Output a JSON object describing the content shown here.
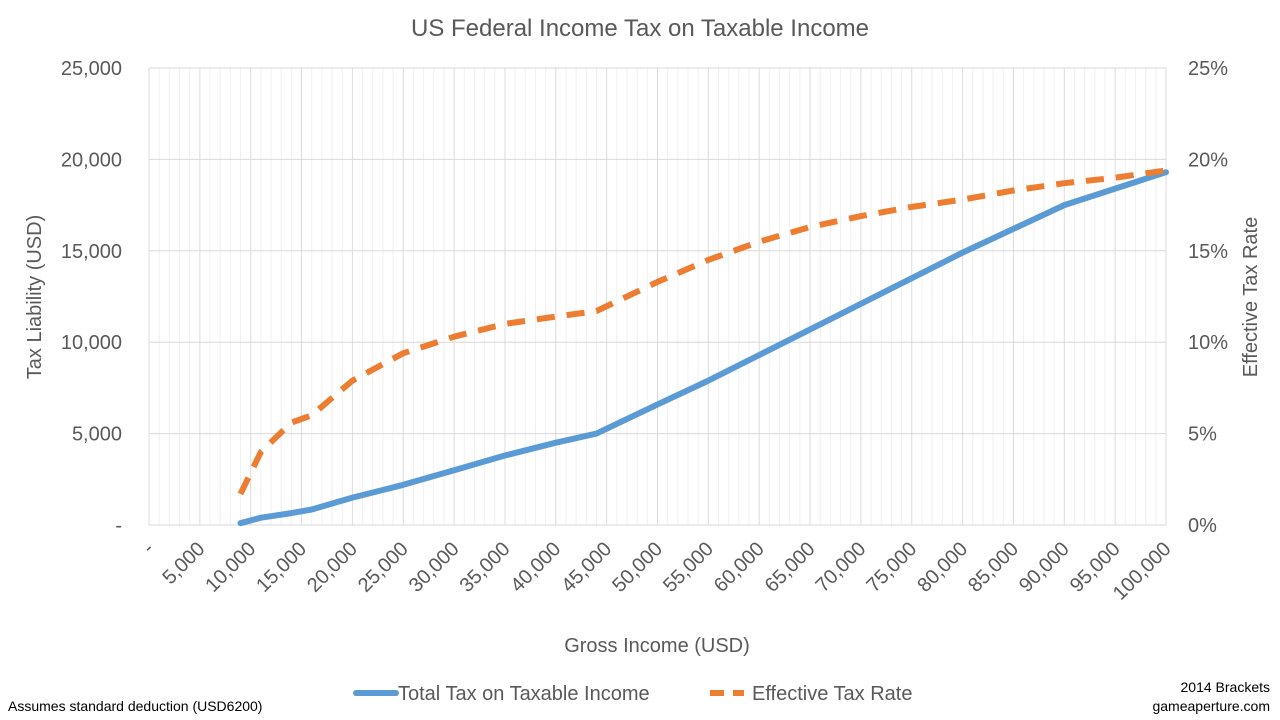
{
  "chart_data": {
    "type": "line",
    "title": "US Federal Income Tax on Taxable Income",
    "xlabel": "Gross Income (USD)",
    "ylabel": "Tax Liability (USD)",
    "y2label": "Effective Tax Rate",
    "xlim": [
      0,
      100000
    ],
    "ylim": [
      0,
      25000
    ],
    "y2lim": [
      0,
      0.25
    ],
    "x_ticks": [
      0,
      5000,
      10000,
      15000,
      20000,
      25000,
      30000,
      35000,
      40000,
      45000,
      50000,
      55000,
      60000,
      65000,
      70000,
      75000,
      80000,
      85000,
      90000,
      95000,
      100000
    ],
    "x_tick_labels": [
      "-",
      "5,000",
      "10,000",
      "15,000",
      "20,000",
      "25,000",
      "30,000",
      "35,000",
      "40,000",
      "45,000",
      "50,000",
      "55,000",
      "60,000",
      "65,000",
      "70,000",
      "75,000",
      "80,000",
      "85,000",
      "90,000",
      "95,000",
      "100,000"
    ],
    "y_ticks": [
      0,
      5000,
      10000,
      15000,
      20000,
      25000
    ],
    "y_tick_labels": [
      "-",
      "5,000",
      "10,000",
      "15,000",
      "20,000",
      "25,000"
    ],
    "y2_ticks": [
      0,
      0.05,
      0.1,
      0.15,
      0.2,
      0.25
    ],
    "y2_tick_labels": [
      "0%",
      "5%",
      "10%",
      "15%",
      "20%",
      "25%"
    ],
    "grid": true,
    "legend_position": "bottom",
    "series": [
      {
        "name": "Total Tax on Taxable Income",
        "axis": "left",
        "style": "solid",
        "color": "#5B9BD5",
        "x": [
          9000,
          11000,
          14000,
          16000,
          20000,
          25000,
          30000,
          35000,
          40000,
          44000,
          50000,
          55000,
          60000,
          65000,
          70000,
          75000,
          80000,
          85000,
          90000,
          95000,
          100000
        ],
        "values": [
          100,
          400,
          650,
          850,
          1500,
          2200,
          3000,
          3800,
          4500,
          5000,
          6600,
          7900,
          9300,
          10700,
          12100,
          13500,
          14900,
          16200,
          17500,
          18400,
          19300
        ]
      },
      {
        "name": "Effective Tax Rate",
        "axis": "right",
        "style": "dashed",
        "color": "#ED7D31",
        "x": [
          9000,
          11000,
          14000,
          16000,
          20000,
          25000,
          30000,
          35000,
          40000,
          44000,
          50000,
          55000,
          60000,
          65000,
          70000,
          75000,
          80000,
          85000,
          90000,
          95000,
          100000
        ],
        "values": [
          0.017,
          0.04,
          0.056,
          0.06,
          0.079,
          0.094,
          0.103,
          0.11,
          0.114,
          0.117,
          0.133,
          0.145,
          0.155,
          0.163,
          0.169,
          0.174,
          0.178,
          0.183,
          0.187,
          0.19,
          0.194
        ]
      }
    ]
  },
  "footer": {
    "left_note": "Assumes standard deduction (USD6200)",
    "right_note_line1": "2014 Brackets",
    "right_note_line2": "gameaperture.com"
  }
}
